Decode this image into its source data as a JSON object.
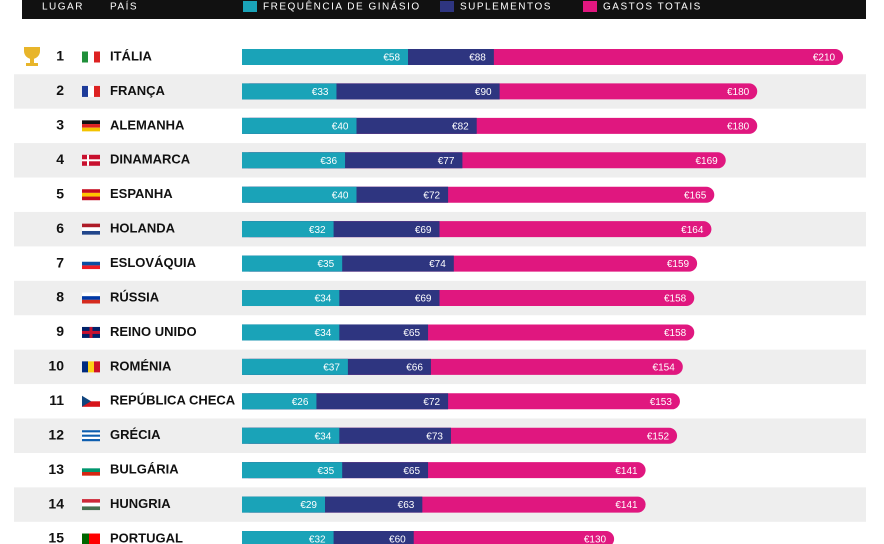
{
  "chart_data": {
    "type": "bar",
    "orientation": "horizontal",
    "column_headers": [
      "LUGAR",
      "PAÍS"
    ],
    "ranks": [
      1,
      2,
      3,
      4,
      5,
      6,
      7,
      8,
      9,
      10,
      11,
      12,
      13,
      14,
      15
    ],
    "categories": [
      "ITÁLIA",
      "FRANÇA",
      "ALEMANHA",
      "DINAMARCA",
      "ESPANHA",
      "HOLANDA",
      "ESLOVÁQUIA",
      "RÚSSIA",
      "REINO UNIDO",
      "ROMÉNIA",
      "REPÚBLICA CHECA",
      "GRÉCIA",
      "BULGÁRIA",
      "HUNGRIA",
      "PORTUGAL"
    ],
    "series": [
      {
        "name": "GASTOS TOTAIS",
        "color": "#e0177f",
        "values": [
          210,
          180,
          180,
          169,
          165,
          164,
          159,
          158,
          158,
          154,
          153,
          152,
          141,
          141,
          130
        ],
        "value_labels": [
          "€210",
          "€180",
          "€180",
          "€169",
          "€165",
          "€164",
          "€159",
          "€158",
          "€158",
          "€154",
          "€153",
          "€152",
          "€141",
          "€141",
          "€130"
        ]
      },
      {
        "name": "SUPLEMENTOS",
        "color": "#2e3580",
        "values": [
          88,
          90,
          82,
          77,
          72,
          69,
          74,
          69,
          65,
          66,
          72,
          73,
          65,
          63,
          60
        ],
        "value_labels": [
          "€88",
          "€90",
          "€82",
          "€77",
          "€72",
          "€69",
          "€74",
          "€69",
          "€65",
          "€66",
          "€72",
          "€73",
          "€65",
          "€63",
          "€60"
        ]
      },
      {
        "name": "FREQUÊNCIA DE GINÁSIO",
        "color": "#1aa3b8",
        "values": [
          58,
          33,
          40,
          36,
          40,
          32,
          35,
          34,
          34,
          37,
          26,
          34,
          35,
          29,
          32
        ],
        "value_labels": [
          "€58",
          "€33",
          "€40",
          "€36",
          "€40",
          "€32",
          "€35",
          "€34",
          "€34",
          "€37",
          "€26",
          "€34",
          "€35",
          "€29",
          "€32"
        ]
      }
    ],
    "legend_order": [
      2,
      1,
      0
    ],
    "xlim": [
      0,
      218
    ]
  }
}
